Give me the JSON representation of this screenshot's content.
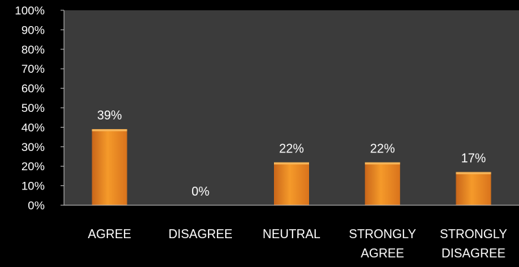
{
  "chart_data": {
    "type": "bar",
    "title": "",
    "xlabel": "",
    "ylabel": "",
    "ylim": [
      0,
      100
    ],
    "yticks": [
      "0%",
      "10%",
      "20%",
      "30%",
      "40%",
      "50%",
      "60%",
      "70%",
      "80%",
      "90%",
      "100%"
    ],
    "categories": [
      [
        "AGREE"
      ],
      [
        "DISAGREE"
      ],
      [
        "NEUTRAL"
      ],
      [
        "STRONGLY",
        "AGREE"
      ],
      [
        "STRONGLY",
        "DISAGREE"
      ]
    ],
    "values": [
      39,
      0,
      22,
      22,
      17
    ],
    "data_labels": [
      "39%",
      "0%",
      "22%",
      "22%",
      "17%"
    ],
    "grid": false,
    "legend": "none",
    "colors": {
      "background": "#000000",
      "plot_area": "#3b3b3b",
      "bar": "#f08c1e",
      "bar_highlight": "#f7b65a",
      "text": "#ffffff"
    }
  }
}
